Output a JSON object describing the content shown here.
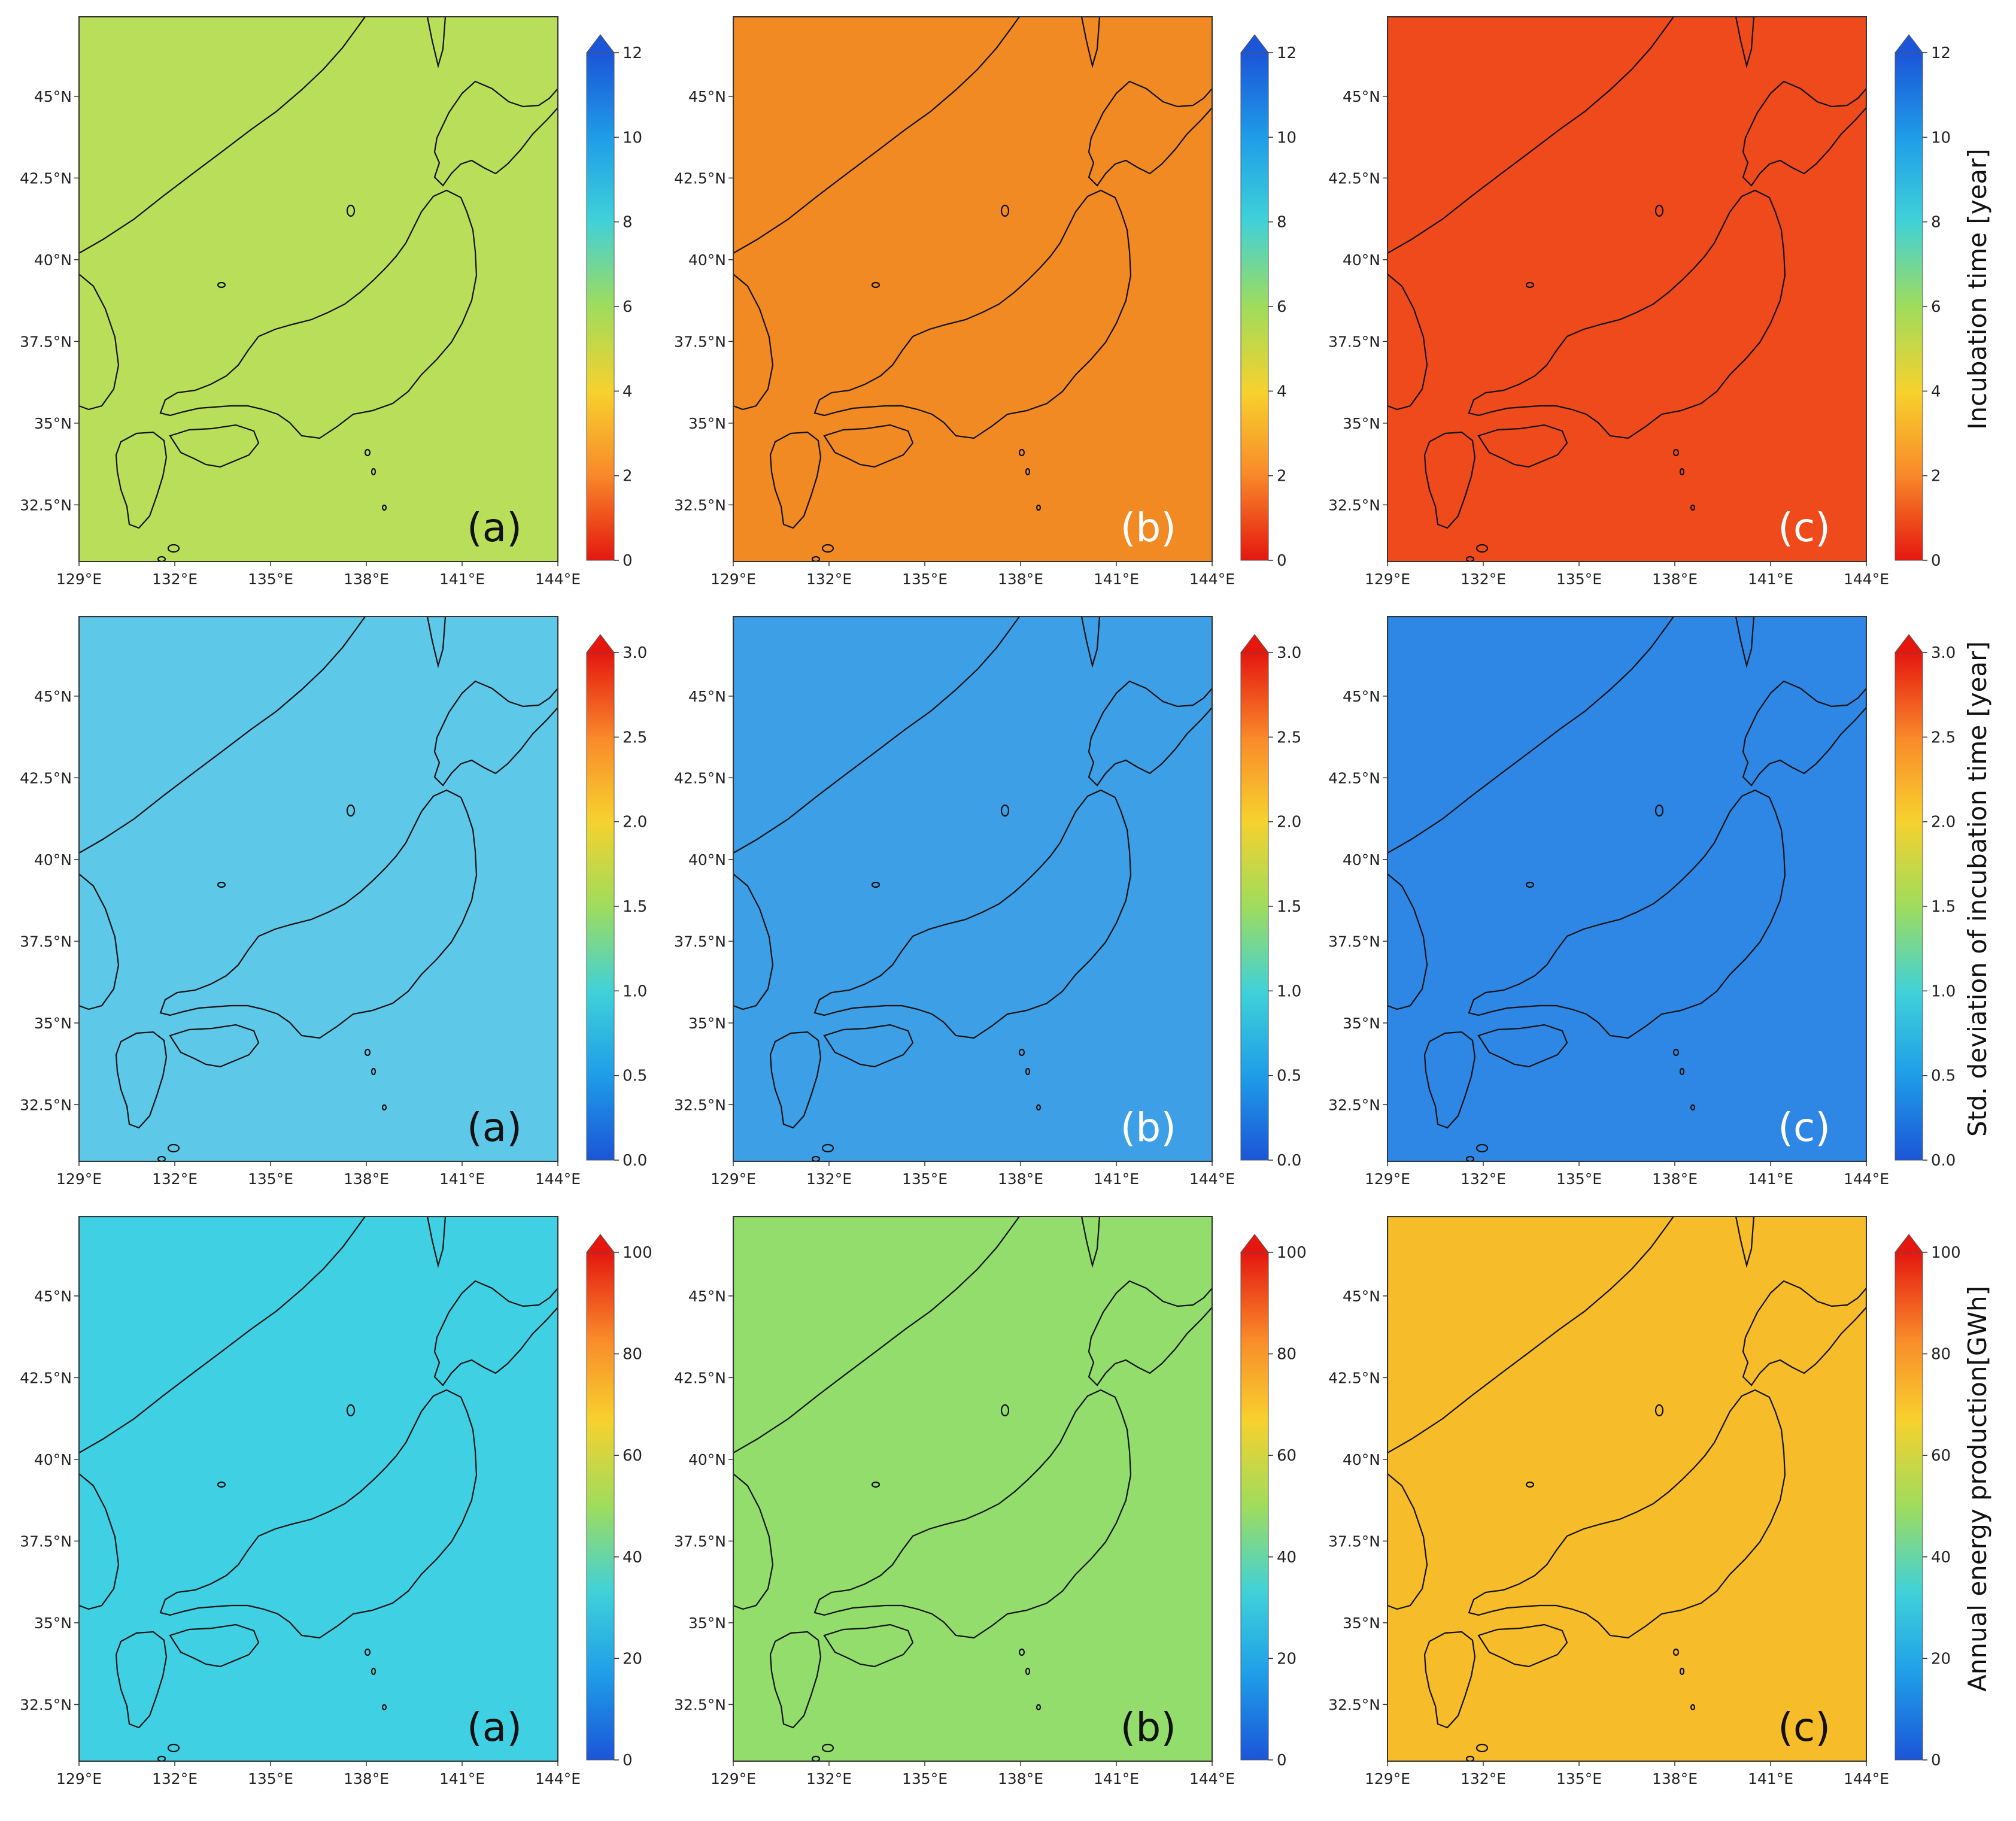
{
  "figure": {
    "panel_labels": [
      "(a)",
      "(b)",
      "(c)"
    ],
    "lat_ticks": [
      "45°N",
      "42.5°N",
      "40°N",
      "37.5°N",
      "35°N",
      "32.5°N"
    ],
    "lon_ticks": [
      "129°E",
      "132°E",
      "135°E",
      "138°E",
      "141°E",
      "144°E"
    ]
  },
  "rows": [
    {
      "title": "Incubation time [year]",
      "colormap": "jet_r",
      "range": [
        0,
        12
      ],
      "extend": "max",
      "cb_ticks": [
        "0",
        "2",
        "4",
        "6",
        "8",
        "10",
        "12"
      ],
      "panel_base_colors": [
        "#b9df5a",
        "#f28a24",
        "#ee4a1c"
      ],
      "panel_label_colors": [
        "#111111",
        "#ffffff",
        "#ffffff"
      ]
    },
    {
      "title": "Std. deviation  of incubation time [year]",
      "colormap": "jet",
      "range": [
        0.0,
        3.0
      ],
      "extend": "max",
      "cb_ticks": [
        "0.0",
        "0.5",
        "1.0",
        "1.5",
        "2.0",
        "2.5",
        "3.0"
      ],
      "panel_base_colors": [
        "#5ec8e8",
        "#3d9fe6",
        "#2e87e4"
      ],
      "panel_label_colors": [
        "#111111",
        "#ffffff",
        "#ffffff"
      ]
    },
    {
      "title": "Annual energy production[GWh]",
      "colormap": "jet",
      "range": [
        0,
        100
      ],
      "extend": "max",
      "cb_ticks": [
        "0",
        "20",
        "40",
        "60",
        "80",
        "100"
      ],
      "panel_base_colors": [
        "#3fd1e3",
        "#92dd6c",
        "#f6bc2a"
      ],
      "panel_label_colors": [
        "#111111",
        "#111111",
        "#111111"
      ]
    }
  ]
}
